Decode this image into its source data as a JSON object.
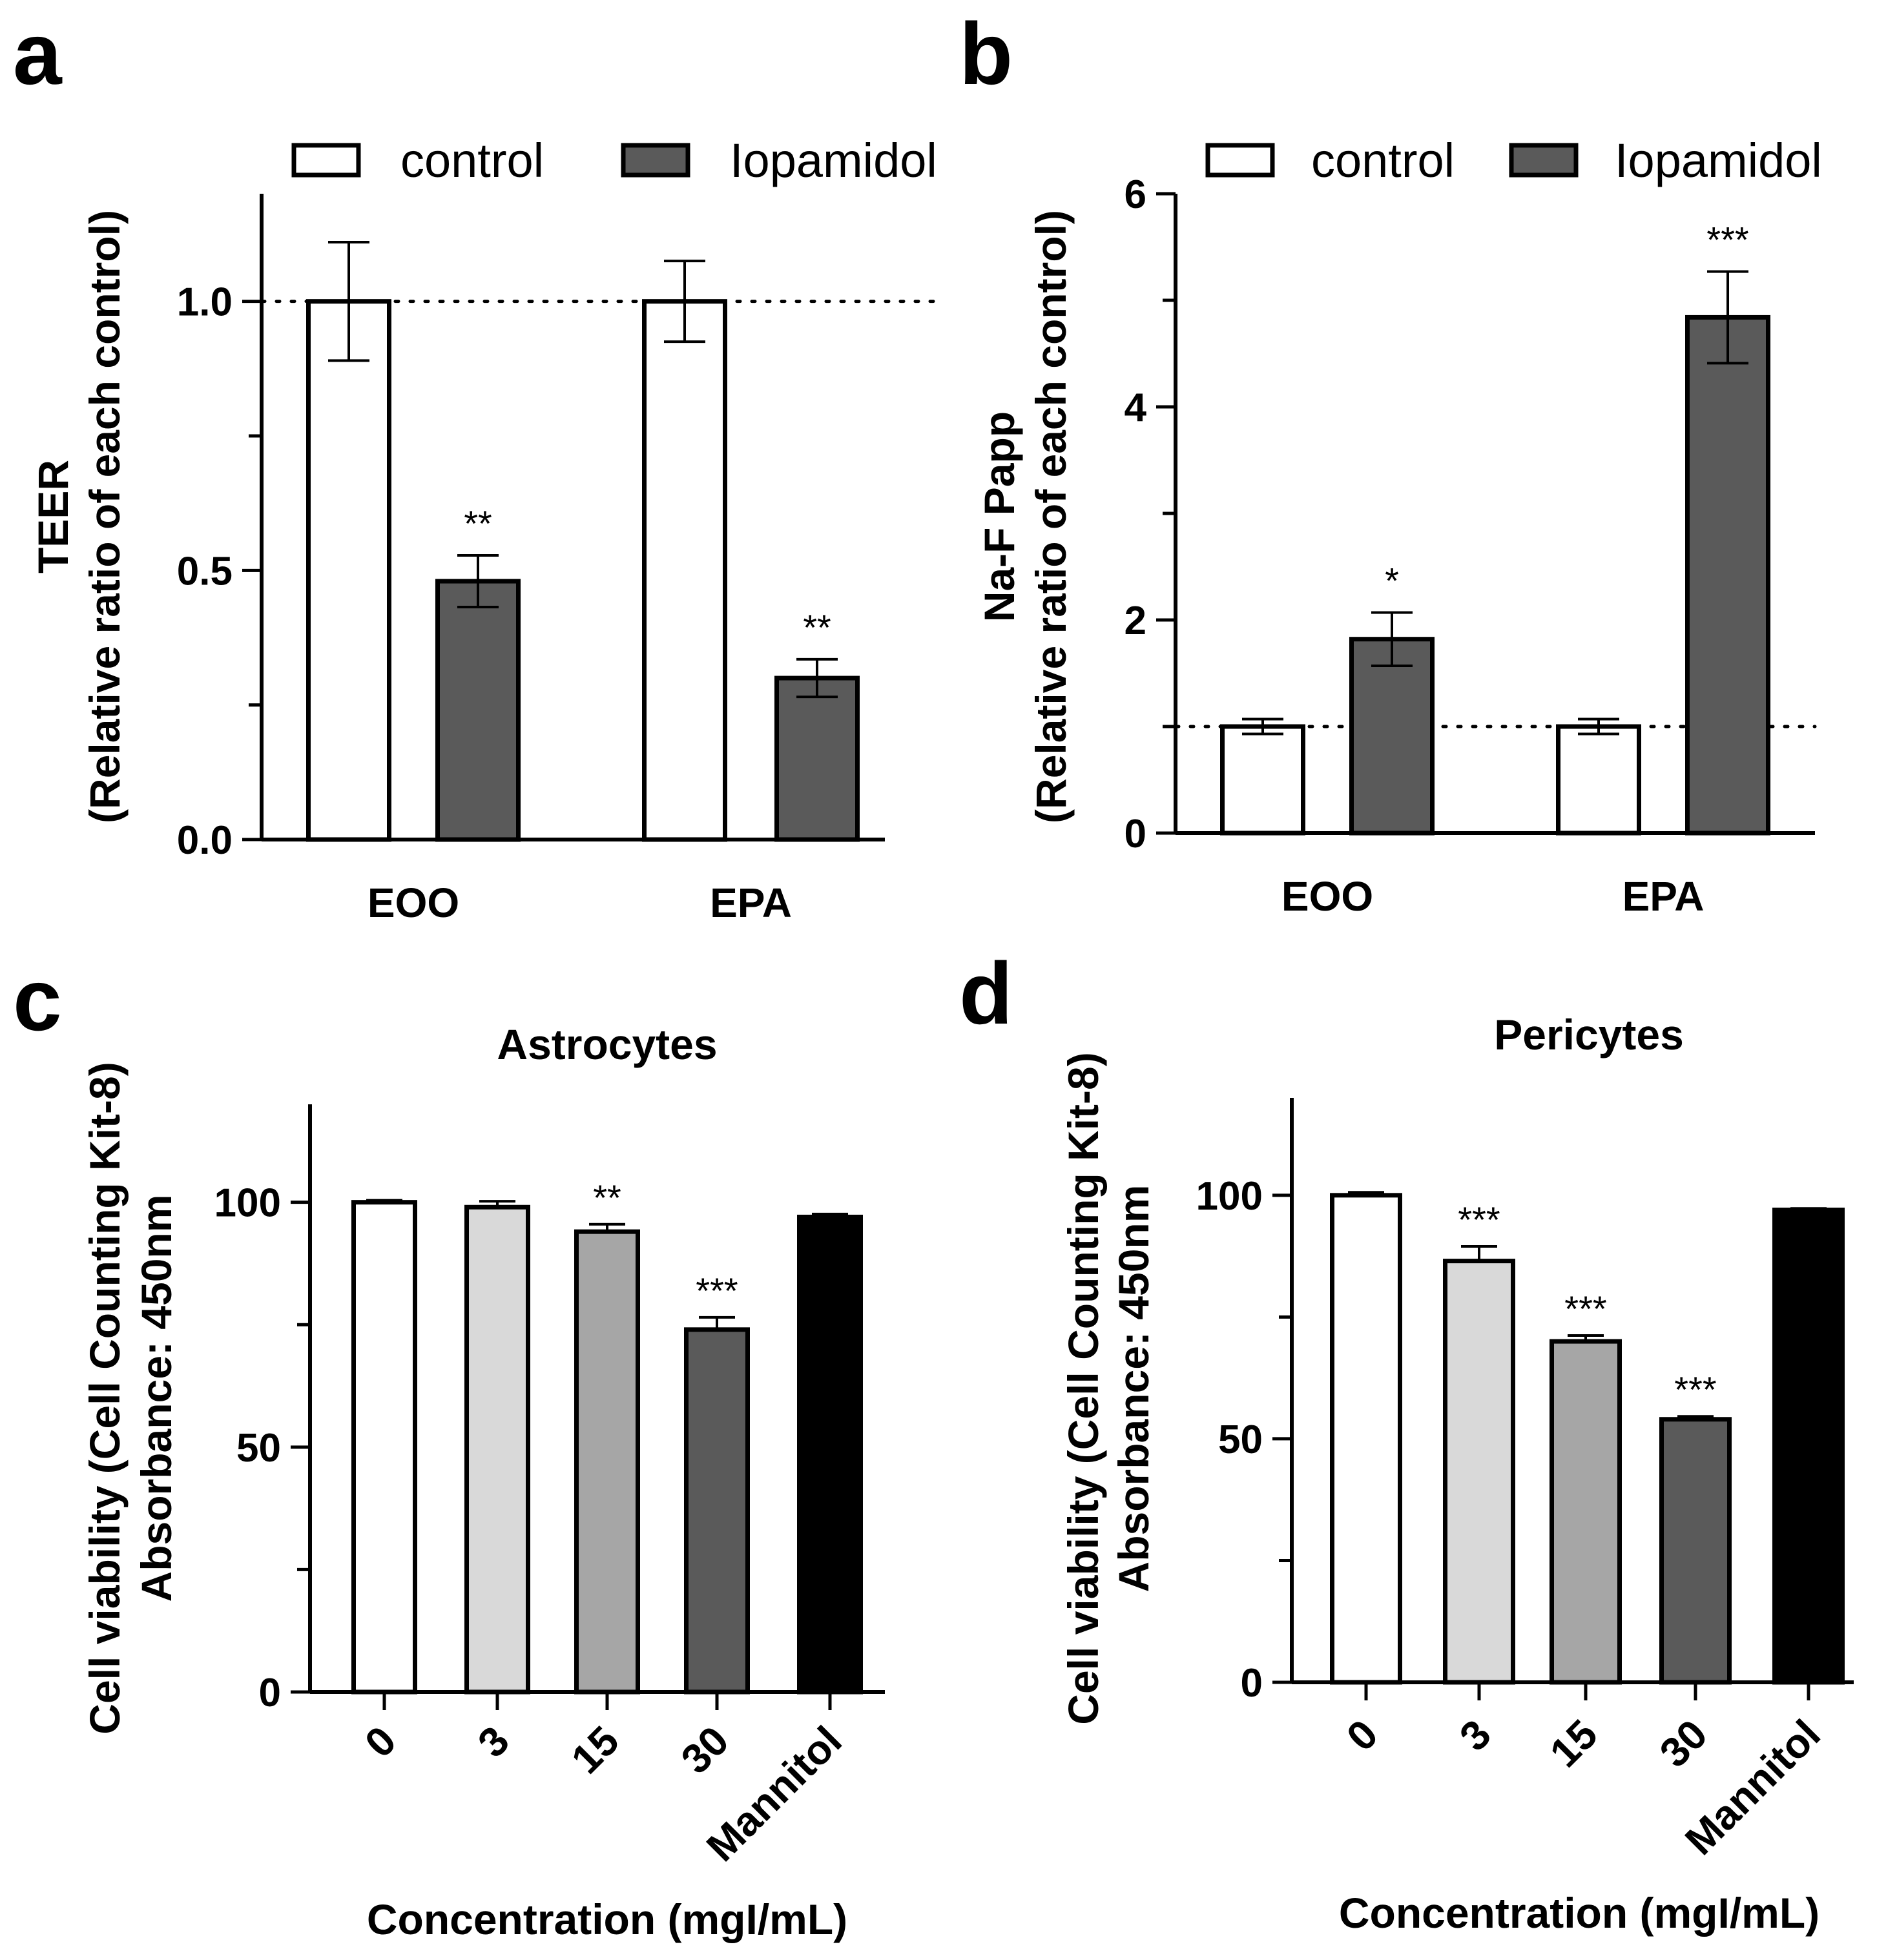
{
  "chart_data": [
    {
      "panel": "a",
      "type": "bar",
      "title": "",
      "ylabel_lines": [
        "TEER",
        "(Relative ratio of each control)"
      ],
      "xlabel": "",
      "categories": [
        "EOO",
        "EPA"
      ],
      "series": [
        {
          "name": "control",
          "color": "#ffffff",
          "values": [
            1.0,
            1.0
          ],
          "errors": [
            0.11,
            0.075
          ]
        },
        {
          "name": "Iopamidol",
          "color": "#5a5a5a",
          "values": [
            0.48,
            0.3
          ],
          "errors": [
            0.048,
            0.035
          ]
        }
      ],
      "significance": [
        [
          "",
          "**"
        ],
        [
          "",
          "**"
        ]
      ],
      "ylim": [
        0,
        1.2
      ],
      "yticks": [
        0.0,
        0.5,
        1.0
      ],
      "ytick_labels": [
        "0.0",
        "0.5",
        "1.0"
      ],
      "reference_line": 1.0,
      "legend": "top"
    },
    {
      "panel": "b",
      "type": "bar",
      "title": "",
      "ylabel_lines": [
        "Na-F Papp",
        "(Relative ratio of each control)"
      ],
      "xlabel": "",
      "categories": [
        "EOO",
        "EPA"
      ],
      "series": [
        {
          "name": "control",
          "color": "#ffffff",
          "values": [
            1.0,
            1.0
          ],
          "errors": [
            0.07,
            0.07
          ]
        },
        {
          "name": "Iopamidol",
          "color": "#5a5a5a",
          "values": [
            1.82,
            4.84
          ],
          "errors": [
            0.25,
            0.43
          ]
        }
      ],
      "significance": [
        [
          "",
          "*"
        ],
        [
          "",
          "***"
        ]
      ],
      "ylim": [
        0,
        6
      ],
      "yticks": [
        0,
        2,
        4,
        6
      ],
      "ytick_labels": [
        "0",
        "2",
        "4",
        "6"
      ],
      "reference_line": 1.0,
      "legend": "top"
    },
    {
      "panel": "c",
      "type": "bar",
      "title": "Astrocytes",
      "ylabel_lines": [
        "Cell viability (Cell Counting Kit-8)",
        "Absorbance: 450nm"
      ],
      "xlabel": "Concentration (mgI/mL)",
      "categories": [
        "0",
        "3",
        "15",
        "30",
        "Mannitol"
      ],
      "values": [
        100,
        99,
        94,
        74,
        97
      ],
      "errors": [
        0.4,
        1.2,
        1.5,
        2.5,
        0.6
      ],
      "colors": [
        "#ffffff",
        "#d9d9d9",
        "#a6a6a6",
        "#5a5a5a",
        "#000000"
      ],
      "significance": [
        "",
        "",
        "**",
        "***",
        ""
      ],
      "ylim": [
        0,
        120
      ],
      "yticks": [
        0,
        50,
        100
      ],
      "ytick_labels": [
        "0",
        "50",
        "100"
      ]
    },
    {
      "panel": "d",
      "type": "bar",
      "title": "Pericytes",
      "ylabel_lines": [
        "Cell viability (Cell Counting Kit-8)",
        "Absorbance: 450nm"
      ],
      "xlabel": "Concentration (mgI/mL)",
      "categories": [
        "0",
        "3",
        "15",
        "30",
        "Mannitol"
      ],
      "values": [
        100,
        86.5,
        70,
        54,
        97
      ],
      "errors": [
        0.6,
        3,
        1.2,
        0.6,
        0.3
      ],
      "colors": [
        "#ffffff",
        "#d9d9d9",
        "#a6a6a6",
        "#5a5a5a",
        "#000000"
      ],
      "significance": [
        "",
        "***",
        "***",
        "***",
        ""
      ],
      "ylim": [
        0,
        120
      ],
      "yticks": [
        0,
        50,
        100
      ],
      "ytick_labels": [
        "0",
        "50",
        "100"
      ]
    }
  ]
}
